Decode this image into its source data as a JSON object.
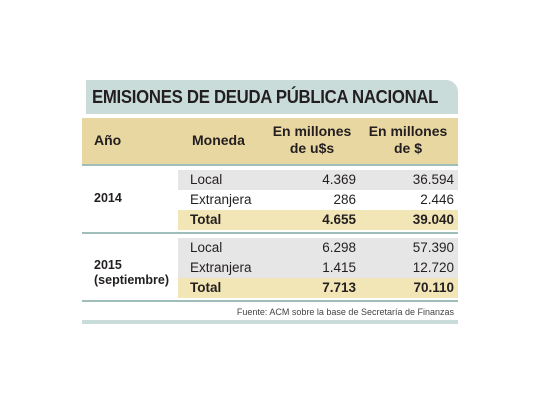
{
  "chart_data": {
    "type": "table",
    "title": "EMISIONES DE DEUDA PÚBLICA NACIONAL",
    "columns": [
      "Año",
      "Moneda",
      "En millones de u$s",
      "En millones de $"
    ],
    "groups": [
      {
        "year": "2014",
        "rows": [
          {
            "currency": "Local",
            "usd": "4.369",
            "ars": "36.594"
          },
          {
            "currency": "Extranjera",
            "usd": "286",
            "ars": "2.446"
          },
          {
            "currency": "Total",
            "usd": "4.655",
            "ars": "39.040"
          }
        ]
      },
      {
        "year": "2015",
        "year_note": "(septiembre)",
        "rows": [
          {
            "currency": "Local",
            "usd": "6.298",
            "ars": "57.390"
          },
          {
            "currency": "Extranjera",
            "usd": "1.415",
            "ars": "12.720"
          },
          {
            "currency": "Total",
            "usd": "7.713",
            "ars": "70.110"
          }
        ]
      }
    ],
    "source": "Fuente: ACM sobre la base de Secretaría de Finanzas"
  },
  "colors": {
    "title_background": "#c9dcd9",
    "header_background": "#e8d7a0",
    "total_row_background": "#f3e6b6",
    "data_row_background": "#e6e6e6",
    "separator": "#9fbdb9"
  },
  "header": {
    "year": "Año",
    "currency": "Moneda",
    "usd_line1": "En millones",
    "usd_line2": "de u$s",
    "ars_line1": "En millones",
    "ars_line2": "de $"
  }
}
